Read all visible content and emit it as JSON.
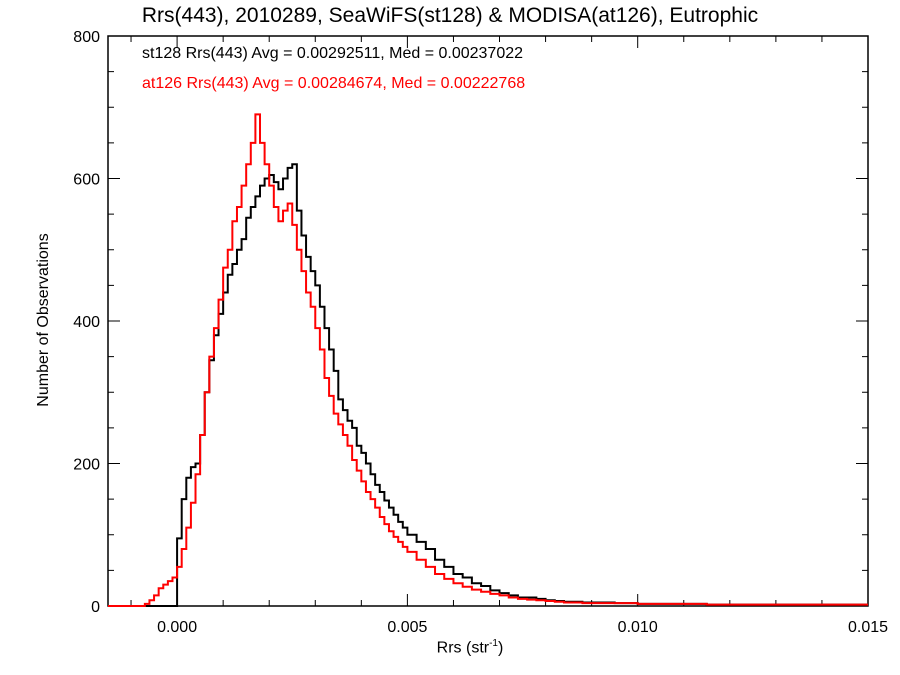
{
  "chart_data": {
    "type": "line",
    "title": "Rrs(443), 2010289, SeaWiFS(st128) & MODISA(at126), Eutrophic",
    "xlabel": "Rrs (str",
    "xlabel_exponent": "-1",
    "xlabel_close": ")",
    "ylabel": "Number of Observations",
    "xlim": [
      -0.0015,
      0.015
    ],
    "ylim": [
      0,
      800
    ],
    "xticks": [
      0.0,
      0.005,
      0.01,
      0.015
    ],
    "xtick_labels": [
      "0.000",
      "0.005",
      "0.010",
      "0.015"
    ],
    "yticks": [
      0,
      200,
      400,
      600,
      800
    ],
    "ytick_labels": [
      "0",
      "200",
      "400",
      "600",
      "800"
    ],
    "grid": false,
    "annotations": [
      "st128 Rrs(443) Avg = 0.00292511, Med = 0.00237022",
      "at126 Rrs(443) Avg = 0.00284674, Med = 0.00222768"
    ],
    "series": [
      {
        "color": "#000000",
        "x": [
          -0.0015,
          -0.0001,
          0.0,
          0.0001,
          0.0002,
          0.0003,
          0.0004,
          0.0005,
          0.0006,
          0.0007,
          0.0008,
          0.0009,
          0.001,
          0.0011,
          0.0012,
          0.0013,
          0.0014,
          0.0015,
          0.0016,
          0.0017,
          0.0018,
          0.0019,
          0.002,
          0.0021,
          0.0022,
          0.0023,
          0.0024,
          0.0025,
          0.0026,
          0.0027,
          0.0028,
          0.0029,
          0.003,
          0.0031,
          0.0032,
          0.0033,
          0.0034,
          0.0035,
          0.0036,
          0.0037,
          0.0038,
          0.0039,
          0.004,
          0.0041,
          0.0042,
          0.0043,
          0.0044,
          0.0045,
          0.0046,
          0.0047,
          0.0048,
          0.0049,
          0.005,
          0.0052,
          0.0054,
          0.0056,
          0.0058,
          0.006,
          0.0062,
          0.0064,
          0.0066,
          0.0068,
          0.007,
          0.0072,
          0.0074,
          0.0076,
          0.0078,
          0.008,
          0.0082,
          0.0084,
          0.0086,
          0.0088,
          0.009,
          0.0095,
          0.01,
          0.0105,
          0.011,
          0.0115,
          0.012,
          0.0125,
          0.013,
          0.0135,
          0.014,
          0.0145,
          0.015
        ],
        "values": [
          0,
          0,
          95,
          150,
          180,
          195,
          200,
          240,
          300,
          345,
          380,
          410,
          440,
          465,
          480,
          500,
          515,
          545,
          560,
          575,
          590,
          600,
          605,
          595,
          585,
          600,
          615,
          620,
          555,
          520,
          490,
          470,
          450,
          420,
          390,
          360,
          330,
          290,
          275,
          260,
          250,
          225,
          215,
          200,
          185,
          170,
          160,
          148,
          138,
          128,
          118,
          110,
          100,
          90,
          80,
          65,
          55,
          45,
          40,
          32,
          28,
          22,
          18,
          15,
          12,
          12,
          10,
          8,
          7,
          6,
          6,
          5,
          5,
          4,
          3,
          3,
          3,
          2,
          2,
          2,
          2,
          2,
          2,
          2,
          2
        ]
      },
      {
        "color": "#ff0000",
        "x": [
          -0.0015,
          -0.0007,
          -0.0006,
          -0.0005,
          -0.0004,
          -0.0003,
          -0.0002,
          -0.0001,
          0.0,
          0.0001,
          0.0002,
          0.0003,
          0.0004,
          0.0005,
          0.0006,
          0.0007,
          0.0008,
          0.0009,
          0.001,
          0.0011,
          0.0012,
          0.0013,
          0.0014,
          0.0015,
          0.0016,
          0.0017,
          0.0018,
          0.0019,
          0.002,
          0.0021,
          0.0022,
          0.0023,
          0.0024,
          0.0025,
          0.0026,
          0.0027,
          0.0028,
          0.0029,
          0.003,
          0.0031,
          0.0032,
          0.0033,
          0.0034,
          0.0035,
          0.0036,
          0.0037,
          0.0038,
          0.0039,
          0.004,
          0.0041,
          0.0042,
          0.0043,
          0.0044,
          0.0045,
          0.0046,
          0.0047,
          0.0048,
          0.0049,
          0.005,
          0.0052,
          0.0054,
          0.0056,
          0.0058,
          0.006,
          0.0062,
          0.0064,
          0.0066,
          0.0068,
          0.007,
          0.0072,
          0.0074,
          0.0076,
          0.0078,
          0.008,
          0.0082,
          0.0084,
          0.0086,
          0.0088,
          0.009,
          0.0095,
          0.01,
          0.0105,
          0.011,
          0.0115,
          0.012,
          0.0125,
          0.013,
          0.0135,
          0.014,
          0.0145,
          0.015
        ],
        "values": [
          0,
          3,
          8,
          15,
          25,
          30,
          35,
          40,
          55,
          80,
          110,
          145,
          185,
          240,
          300,
          350,
          390,
          430,
          475,
          500,
          540,
          560,
          590,
          620,
          650,
          690,
          650,
          620,
          590,
          560,
          540,
          555,
          565,
          535,
          500,
          470,
          440,
          420,
          390,
          360,
          320,
          295,
          270,
          255,
          240,
          225,
          205,
          190,
          175,
          160,
          150,
          138,
          125,
          115,
          105,
          97,
          90,
          83,
          76,
          65,
          55,
          45,
          38,
          32,
          27,
          23,
          20,
          17,
          15,
          12,
          10,
          9,
          8,
          7,
          6,
          5,
          5,
          4,
          4,
          4,
          3,
          3,
          3,
          2,
          2,
          2,
          2,
          2,
          2,
          2,
          2
        ]
      }
    ]
  }
}
